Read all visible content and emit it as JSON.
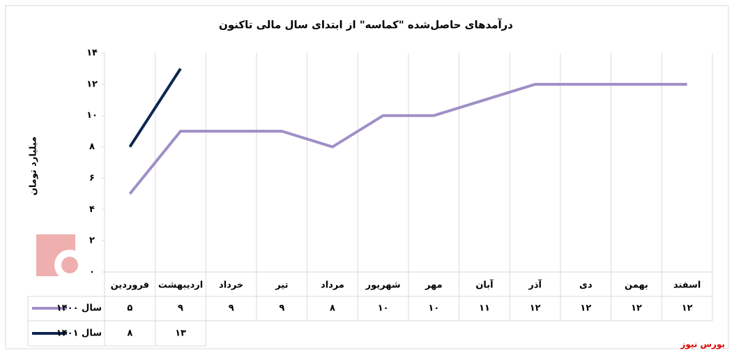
{
  "chart_data": {
    "type": "line",
    "title": "درآمدهای حاصل‌شده \"کماسه\" از ابتدای سال مالی تاکنون",
    "y_label": "میلیارد تومان",
    "categories": [
      "فروردین",
      "اردیبهشت",
      "خرداد",
      "تیر",
      "مرداد",
      "شهریور",
      "مهر",
      "آبان",
      "آذر",
      "دی",
      "بهمن",
      "اسفند"
    ],
    "series": [
      {
        "name": "سال ۱۴۰۰",
        "color": "#9f8fc6",
        "values": [
          5,
          9,
          9,
          9,
          8,
          10,
          10,
          11,
          12,
          12,
          12,
          12
        ],
        "value_labels": [
          "۵",
          "۹",
          "۹",
          "۹",
          "۸",
          "۱۰",
          "۱۰",
          "۱۱",
          "۱۲",
          "۱۲",
          "۱۲",
          "۱۲"
        ]
      },
      {
        "name": "سال ۱۴۰۱",
        "color": "#0e2650",
        "values": [
          8,
          13,
          null,
          null,
          null,
          null,
          null,
          null,
          null,
          null,
          null,
          null
        ],
        "value_labels": [
          "۸",
          "۱۳",
          null,
          null,
          null,
          null,
          null,
          null,
          null,
          null,
          null,
          null
        ]
      }
    ],
    "ylim": [
      0,
      14
    ],
    "yticks": [
      {
        "value": 0,
        "label": "۰"
      },
      {
        "value": 2,
        "label": "۲"
      },
      {
        "value": 4,
        "label": "۴"
      },
      {
        "value": 6,
        "label": "۶"
      },
      {
        "value": 8,
        "label": "۸"
      },
      {
        "value": 10,
        "label": "۱۰"
      },
      {
        "value": 12,
        "label": "۱۲"
      },
      {
        "value": 14,
        "label": "۱۴"
      }
    ],
    "source": "بورس نیوز"
  }
}
